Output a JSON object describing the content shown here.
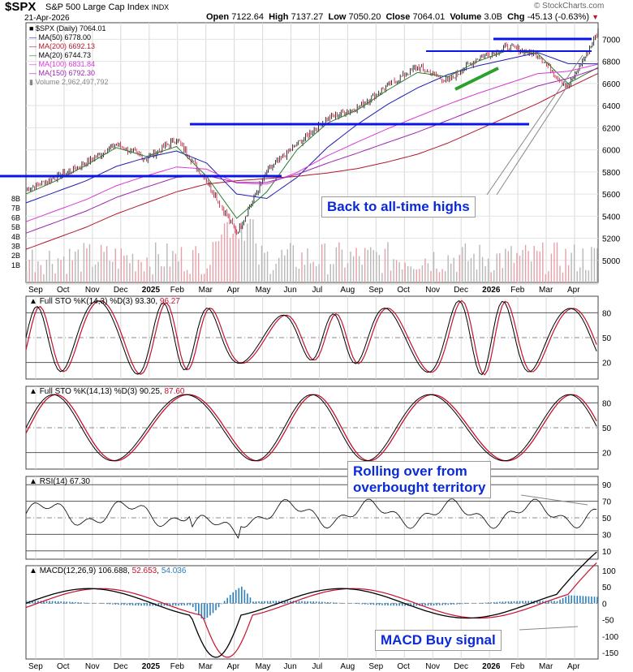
{
  "header": {
    "symbol": "$SPX",
    "name": "S&P 500 Large Cap Index",
    "exchange": "INDX",
    "date": "21-Apr-2026",
    "open_label": "Open",
    "open": "7122.64",
    "high_label": "High",
    "high": "7137.27",
    "low_label": "Low",
    "low": "7050.20",
    "close_label": "Close",
    "close": "7064.01",
    "volume_label": "Volume",
    "volume": "3.0B",
    "chg_label": "Chg",
    "chg": "-45.13 (-0.63%)",
    "watermark": "© StockCharts.com"
  },
  "colors": {
    "up": "#000000",
    "down": "#c8102e",
    "ma50": "#1f1fb4",
    "ma200": "#b2182b",
    "ma20": "#2e7d32",
    "ma100": "#d63bd6",
    "ma150": "#9c27b0",
    "volume": "#b8b8b8",
    "annotation_line": "#0a16e6",
    "trend_line": "#2ca02c",
    "callout_text": "#0a2ad6",
    "macd_hist": "#2c7fb8"
  },
  "x_months": [
    "Sep",
    "Oct",
    "Nov",
    "Dec",
    "2025",
    "Feb",
    "Mar",
    "Apr",
    "May",
    "Jun",
    "Jul",
    "Aug",
    "Sep",
    "Oct",
    "Nov",
    "Dec",
    "2026",
    "Feb",
    "Mar",
    "Apr"
  ],
  "panels": {
    "price": {
      "legend": [
        "$SPX (Daily) 7064.01",
        "MA(50) 6778.00",
        "MA(200) 6692.13",
        "MA(20) 6744.73",
        "MA(100) 6831.84",
        "MA(150) 6792.30",
        "Volume 2,962,497,792"
      ],
      "y_ticks": [
        "7000",
        "6800",
        "6600",
        "6400",
        "6200",
        "6000",
        "5800",
        "5600",
        "5400",
        "5200",
        "5000"
      ],
      "vol_ticks": [
        "8B",
        "7B",
        "6B",
        "5B",
        "4B",
        "3B",
        "2B",
        "1B"
      ],
      "callout": "Back to all-time highs"
    },
    "sto1": {
      "title": "Full STO %K(14,3) %D(3)",
      "k": "93.30",
      "d": "96.27",
      "y_ticks": [
        "80",
        "50",
        "20"
      ]
    },
    "sto2": {
      "title": "Full STO %K(14,13) %D(3)",
      "k": "90.25",
      "d": "87.60",
      "y_ticks": [
        "80",
        "50",
        "20"
      ]
    },
    "rsi": {
      "title": "RSI(14)",
      "value": "67.30",
      "y_ticks": [
        "90",
        "70",
        "50",
        "30",
        "10"
      ],
      "callout_line1": "Rolling over from",
      "callout_line2": "overbought territory"
    },
    "macd": {
      "title": "MACD(12,26,9)",
      "macd": "106.688",
      "signal": "52.653",
      "hist": "54.036",
      "y_ticks": [
        "100",
        "50",
        "0",
        "-50",
        "-100",
        "-150"
      ],
      "callout": "MACD Buy signal"
    }
  },
  "chart_data": {
    "type": "line",
    "title": "$SPX S&P 500 Large Cap Index",
    "x": [
      "2024-09",
      "2024-10",
      "2024-11",
      "2024-12",
      "2025-01",
      "2025-02",
      "2025-03",
      "2025-04",
      "2025-05",
      "2025-06",
      "2025-07",
      "2025-08",
      "2025-09",
      "2025-10",
      "2025-11",
      "2025-12",
      "2026-01",
      "2026-02",
      "2026-03",
      "2026-04"
    ],
    "series": [
      {
        "name": "$SPX (Daily)",
        "values": [
          5640,
          5750,
          5880,
          6050,
          5920,
          6100,
          5720,
          5250,
          5800,
          6050,
          6280,
          6380,
          6580,
          6750,
          6620,
          6830,
          6930,
          6860,
          6560,
          7064
        ]
      },
      {
        "name": "MA(50)",
        "values": [
          5520,
          5620,
          5720,
          5850,
          5930,
          5990,
          5880,
          5600,
          5560,
          5750,
          6020,
          6230,
          6410,
          6560,
          6680,
          6760,
          6820,
          6880,
          6780,
          6778
        ]
      },
      {
        "name": "MA(200)",
        "values": [
          5100,
          5200,
          5300,
          5420,
          5520,
          5620,
          5690,
          5720,
          5740,
          5760,
          5790,
          5830,
          5890,
          5960,
          6060,
          6180,
          6300,
          6420,
          6560,
          6692
        ]
      },
      {
        "name": "MA(20)",
        "values": [
          5600,
          5720,
          5860,
          6020,
          5940,
          6030,
          5760,
          5380,
          5620,
          6000,
          6240,
          6360,
          6540,
          6700,
          6660,
          6800,
          6900,
          6870,
          6600,
          6745
        ]
      }
    ],
    "ylim": [
      4800,
      7150
    ],
    "grid": true,
    "legend": "top-left"
  }
}
